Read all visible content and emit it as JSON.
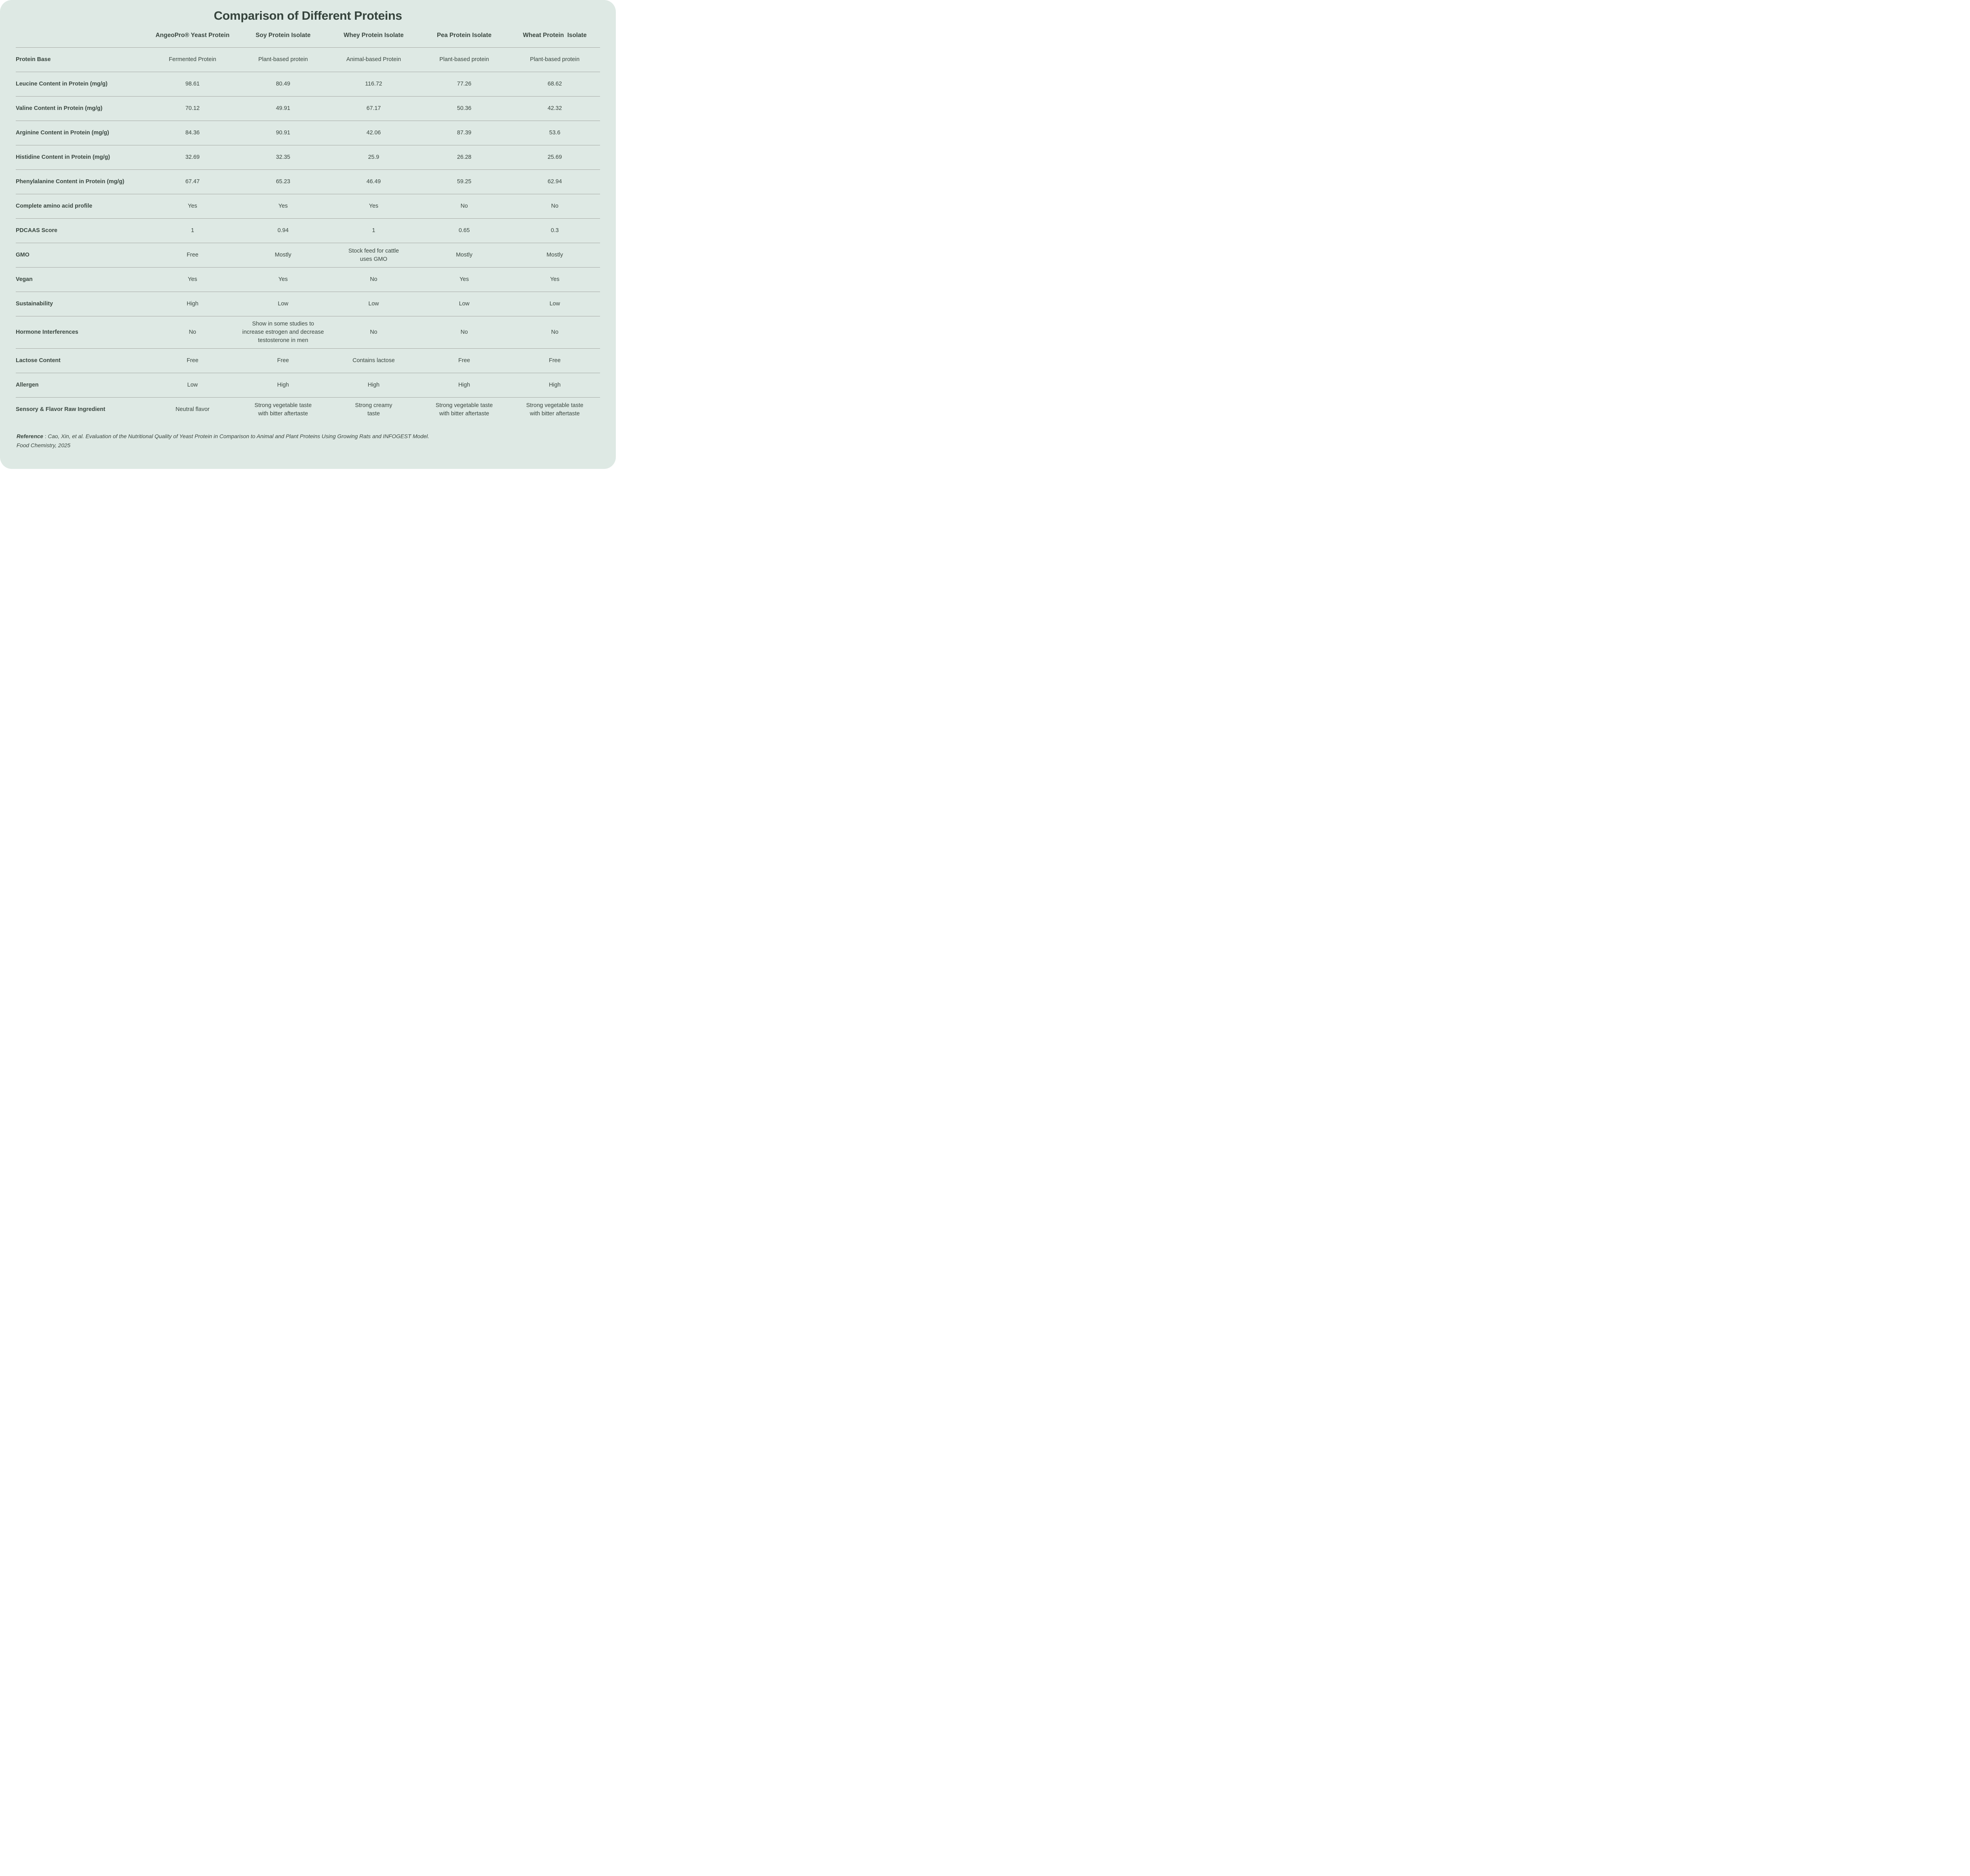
{
  "colors": {
    "panel_background": "#dee9e4",
    "text": "#3a4740",
    "divider": "#a3a7a3",
    "page_background": "#ffffff"
  },
  "chart_data": {
    "type": "table",
    "title": "Comparison of Different Proteins",
    "columns": [
      "AngeoPro® Yeast Protein",
      "Soy Protein Isolate",
      "Whey Protein Isolate",
      "Pea Protein Isolate",
      "Wheat Protein  Isolate"
    ],
    "rows": [
      {
        "label": "Protein Base",
        "values": [
          "Fermented Protein",
          "Plant-based protein",
          "Animal-based Protein",
          "Plant-based protein",
          "Plant-based protein"
        ]
      },
      {
        "label": "Leucine Content in Protein (mg/g)",
        "values": [
          "98.61",
          "80.49",
          "116.72",
          "77.26",
          "68.62"
        ]
      },
      {
        "label": "Valine Content in Protein (mg/g)",
        "values": [
          "70.12",
          "49.91",
          "67.17",
          "50.36",
          "42.32"
        ]
      },
      {
        "label": "Arginine Content in Protein (mg/g)",
        "values": [
          "84.36",
          "90.91",
          "42.06",
          "87.39",
          "53.6"
        ]
      },
      {
        "label": "Histidine Content in Protein (mg/g)",
        "values": [
          "32.69",
          "32.35",
          "25.9",
          "26.28",
          "25.69"
        ]
      },
      {
        "label": "Phenylalanine Content in Protein (mg/g)",
        "values": [
          "67.47",
          "65.23",
          "46.49",
          "59.25",
          "62.94"
        ]
      },
      {
        "label": "Complete amino acid profile",
        "values": [
          "Yes",
          "Yes",
          "Yes",
          "No",
          "No"
        ]
      },
      {
        "label": "PDCAAS Score",
        "values": [
          "1",
          "0.94",
          "1",
          "0.65",
          "0.3"
        ]
      },
      {
        "label": "GMO",
        "values": [
          "Free",
          "Mostly",
          "Stock feed for cattle\nuses GMO",
          "Mostly",
          "Mostly"
        ]
      },
      {
        "label": "Vegan",
        "values": [
          "Yes",
          "Yes",
          "No",
          "Yes",
          "Yes"
        ]
      },
      {
        "label": "Sustainability",
        "values": [
          "High",
          "Low",
          "Low",
          "Low",
          "Low"
        ]
      },
      {
        "label": "Hormone Interferences",
        "values": [
          "No",
          "Show in some studies to\nincrease estrogen and decrease\ntestosterone in men",
          "No",
          "No",
          "No"
        ]
      },
      {
        "label": "Lactose Content",
        "values": [
          "Free",
          "Free",
          "Contains lactose",
          "Free",
          "Free"
        ]
      },
      {
        "label": "Allergen",
        "values": [
          "Low",
          "High",
          "High",
          "High",
          "High"
        ]
      },
      {
        "label": "Sensory & Flavor Raw Ingredient",
        "values": [
          "Neutral flavor",
          "Strong vegetable taste\nwith bitter aftertaste",
          "Strong creamy\ntaste",
          "Strong vegetable taste\nwith bitter aftertaste",
          "Strong vegetable taste\nwith bitter aftertaste"
        ]
      }
    ]
  },
  "reference": {
    "label": "Reference",
    "colon": " :  ",
    "text": "Cao, Xin, et al. Evaluation of the Nutritional Quality of Yeast Protein in Comparison to Animal and Plant Proteins Using Growing Rats and INFOGEST Model.\nFood Chemistry, 2025"
  }
}
